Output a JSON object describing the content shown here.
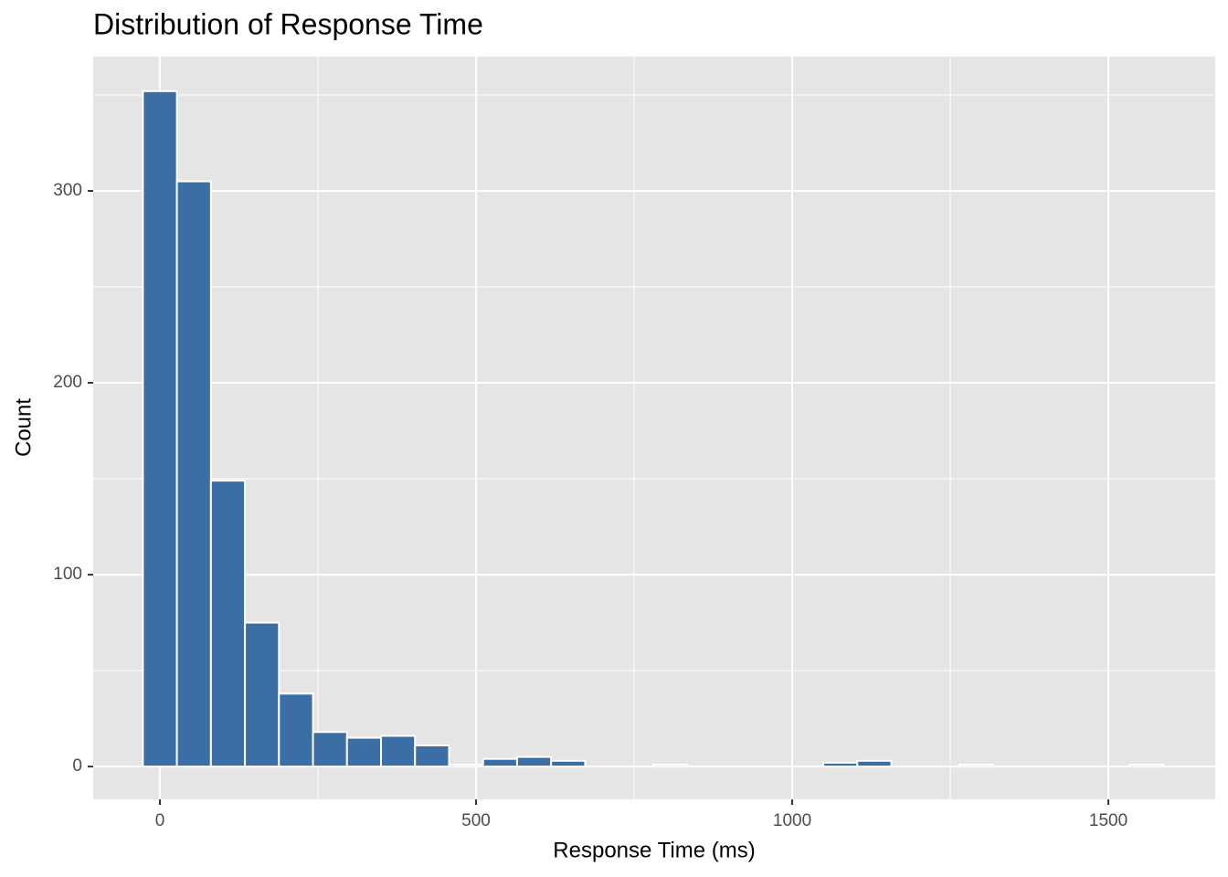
{
  "chart_data": {
    "type": "histogram",
    "title": "Distribution of Response Time",
    "x_label": "Response Time (ms)",
    "y_label": "Count",
    "bins": [
      -26.9,
      26.9,
      80.7,
      134.5,
      188.3,
      242.1,
      295.9,
      349.7,
      403.5,
      457.3,
      511.1,
      564.9,
      618.7,
      672.5,
      726.3,
      780.1,
      833.9,
      887.7,
      941.5,
      995.3,
      1049.1,
      1102.9,
      1156.7,
      1210.5,
      1264.3,
      1318.1,
      1371.9,
      1425.7,
      1479.5,
      1533.3,
      1587.1
    ],
    "values": [
      352,
      305,
      149,
      75,
      38,
      18,
      15,
      16,
      11,
      1,
      4,
      5,
      3,
      0,
      0,
      1,
      0,
      0,
      0,
      0,
      2,
      3,
      0,
      0,
      1,
      0,
      0,
      0,
      0,
      1
    ],
    "color": "#3a6ea5",
    "xlim": [
      -105.5,
      1669
    ],
    "ylim": [
      -17.1,
      370
    ],
    "xticks": [
      0,
      500,
      1000,
      1500
    ],
    "yticks": [
      0,
      100,
      200,
      300
    ],
    "x_minor_ticks": [
      250,
      750,
      1250
    ],
    "y_minor_ticks": [
      50,
      150,
      250,
      350
    ],
    "grid": true
  }
}
